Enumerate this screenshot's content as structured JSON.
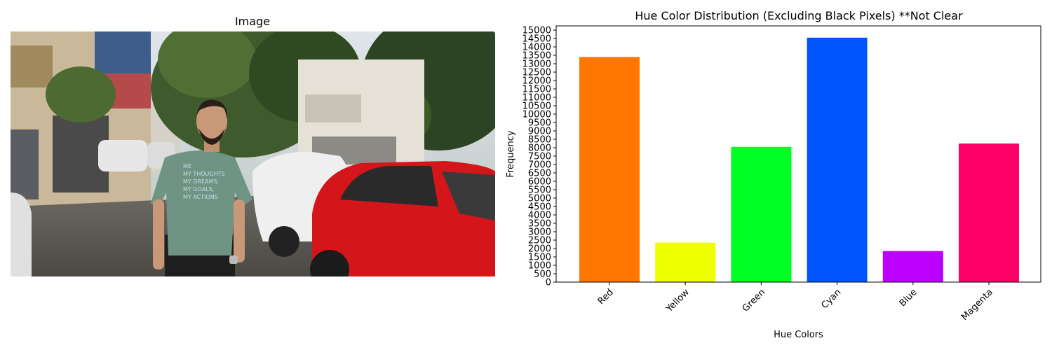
{
  "left_panel": {
    "title": "Image",
    "shirt_text": [
      "ME",
      "MY THOUGHTS",
      "MY DREAMS,",
      "MY GOALS,",
      "MY ACTIONS"
    ]
  },
  "chart_data": {
    "type": "bar",
    "title": "Hue Color Distribution (Excluding Black Pixels) **Not Clear",
    "xlabel": "Hue Colors",
    "ylabel": "Frequency",
    "categories": [
      "Red",
      "Yellow",
      "Green",
      "Cyan",
      "Blue",
      "Magenta"
    ],
    "values": [
      13400,
      2350,
      8050,
      14550,
      1850,
      8250
    ],
    "colors": [
      "#ff7700",
      "#eeff00",
      "#00ff22",
      "#0055ff",
      "#bb00ff",
      "#ff0066"
    ],
    "ylim": [
      0,
      15250
    ],
    "yticks": [
      0,
      500,
      1000,
      1500,
      2000,
      2500,
      3000,
      3500,
      4000,
      4500,
      5000,
      5500,
      6000,
      6500,
      7000,
      7500,
      8000,
      8500,
      9000,
      9500,
      10000,
      10500,
      11000,
      11500,
      12000,
      12500,
      13000,
      13500,
      14000,
      14500,
      15000
    ],
    "grid": false,
    "xtick_rotation": 45
  }
}
